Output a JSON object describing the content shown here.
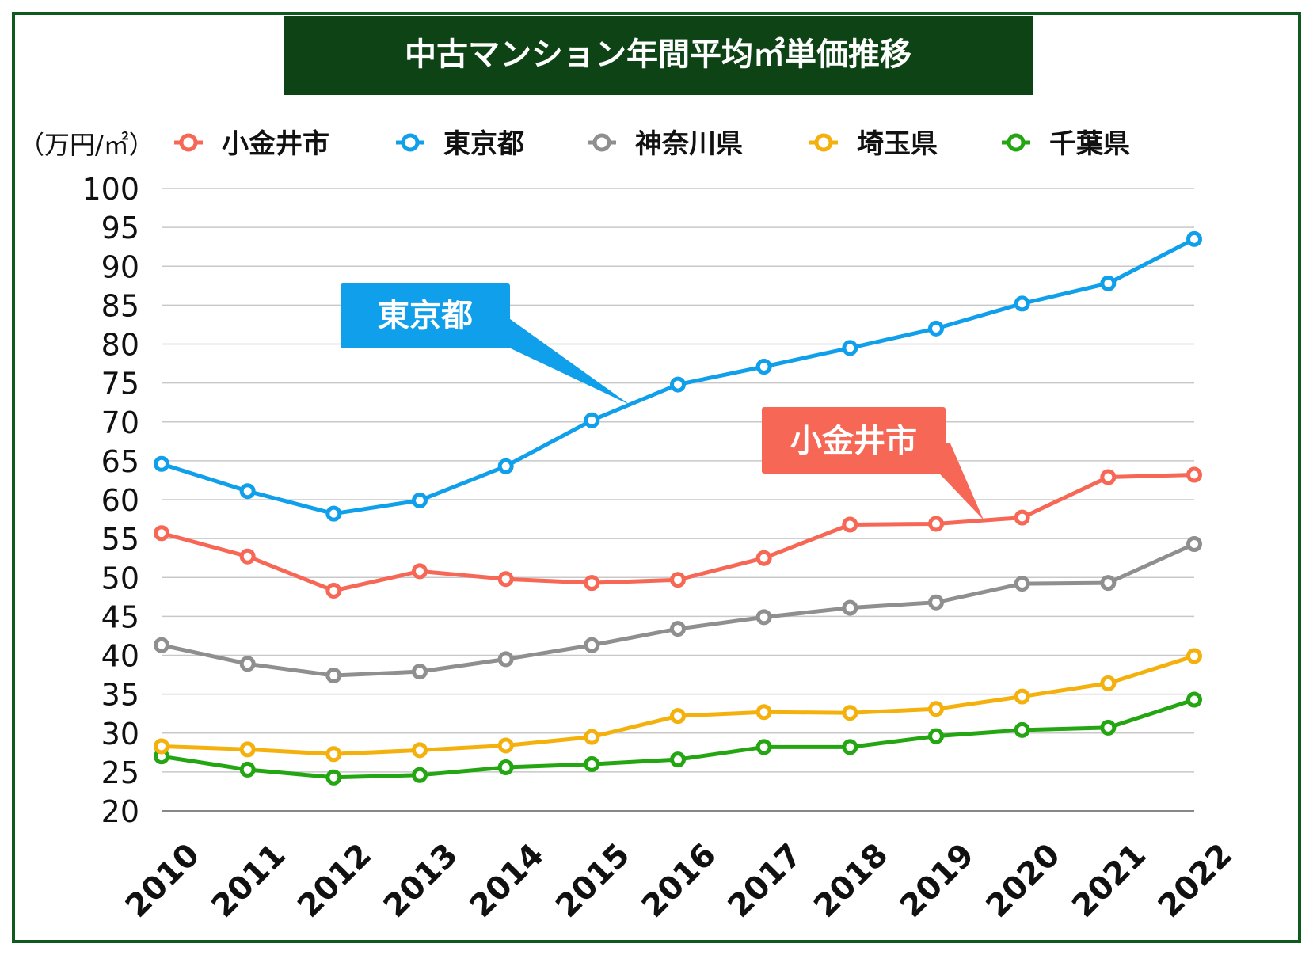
{
  "chart_data": {
    "type": "line",
    "title": "中古マンション年間平均㎡単価推移",
    "unit_label": "（万円/㎡）",
    "x": [
      "2010",
      "2011",
      "2012",
      "2013",
      "2014",
      "2015",
      "2016",
      "2017",
      "2018",
      "2019",
      "2020",
      "2021",
      "2022"
    ],
    "ylim": [
      20,
      100
    ],
    "yticks": [
      100,
      95,
      90,
      85,
      80,
      75,
      70,
      65,
      60,
      55,
      50,
      45,
      40,
      35,
      30,
      25,
      20
    ],
    "grid": true,
    "legend_position": "top",
    "series": [
      {
        "name": "小金井市",
        "color": "#f76756",
        "values": [
          55.7,
          52.7,
          48.3,
          50.8,
          49.8,
          49.3,
          49.7,
          52.5,
          56.8,
          56.9,
          57.7,
          62.9,
          63.2
        ]
      },
      {
        "name": "東京都",
        "color": "#109fea",
        "values": [
          64.6,
          61.1,
          58.2,
          59.9,
          64.3,
          70.2,
          74.8,
          77.1,
          79.5,
          82.0,
          85.2,
          87.8,
          93.5
        ]
      },
      {
        "name": "神奈川県",
        "color": "#8f8f8f",
        "values": [
          41.3,
          38.9,
          37.4,
          37.9,
          39.5,
          41.3,
          43.4,
          44.9,
          46.1,
          46.8,
          49.2,
          49.3,
          54.3
        ]
      },
      {
        "name": "埼玉県",
        "color": "#f4b10e",
        "values": [
          28.3,
          27.9,
          27.3,
          27.8,
          28.4,
          29.5,
          32.2,
          32.7,
          32.6,
          33.1,
          34.7,
          36.4,
          39.9
        ]
      },
      {
        "name": "千葉県",
        "color": "#24a512",
        "values": [
          27.0,
          25.3,
          24.3,
          24.6,
          25.6,
          26.0,
          26.6,
          28.2,
          28.2,
          29.6,
          30.4,
          30.7,
          34.3
        ]
      }
    ],
    "annotations": [
      {
        "text": "東京都",
        "color": "#109fea"
      },
      {
        "text": "小金井市",
        "color": "#f76756"
      }
    ]
  },
  "colors": {
    "title_bg": "#0d4315",
    "title_text": "#ffffff",
    "frame": "#0e5a1f",
    "grid": "#c8c8c8",
    "axis_text": "#111111"
  }
}
